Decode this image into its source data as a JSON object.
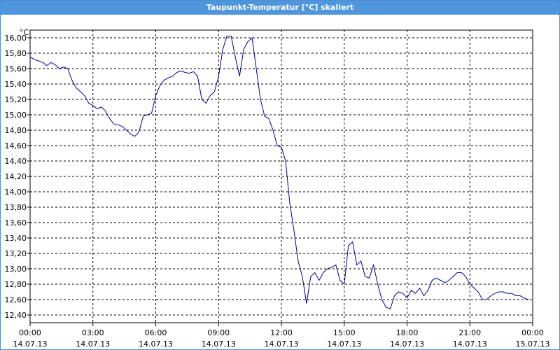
{
  "window": {
    "title": "Taupunkt-Temperatur [°C] skaliert"
  },
  "chart_data": {
    "type": "line",
    "title": "Taupunkt-Temperatur [°C] skaliert",
    "ylabel": "°C",
    "xlabel": "",
    "ylim": [
      12.3,
      16.1
    ],
    "xlim_hours": [
      0,
      24
    ],
    "grid": true,
    "line_color": "#000099",
    "grid_color": "#000000",
    "y_ticks": [
      "16,00",
      "15,80",
      "15,60",
      "15,40",
      "15,20",
      "15,00",
      "14,80",
      "14,60",
      "14,40",
      "14,20",
      "14,00",
      "13,80",
      "13,60",
      "13,40",
      "13,20",
      "13,00",
      "12,80",
      "12,60",
      "12,40"
    ],
    "y_tick_values": [
      16.0,
      15.8,
      15.6,
      15.4,
      15.2,
      15.0,
      14.8,
      14.6,
      14.4,
      14.2,
      14.0,
      13.8,
      13.6,
      13.4,
      13.2,
      13.0,
      12.8,
      12.6,
      12.4
    ],
    "x_ticks": [
      {
        "time": "00:00",
        "date": "14.07.13"
      },
      {
        "time": "03:00",
        "date": "14.07.13"
      },
      {
        "time": "06:00",
        "date": "14.07.13"
      },
      {
        "time": "09:00",
        "date": "14.07.13"
      },
      {
        "time": "12:00",
        "date": "14.07.13"
      },
      {
        "time": "15:00",
        "date": "14.07.13"
      },
      {
        "time": "18:00",
        "date": "14.07.13"
      },
      {
        "time": "21:00",
        "date": "14.07.13"
      },
      {
        "time": "00:00",
        "date": "15.07.13"
      }
    ],
    "x_tick_hours": [
      0,
      3,
      6,
      9,
      12,
      15,
      18,
      21,
      24
    ],
    "series": [
      {
        "x_hours": [
          0,
          0.2,
          0.4,
          0.6,
          0.8,
          1.0,
          1.2,
          1.4,
          1.6,
          1.8,
          2.0,
          2.2,
          2.4,
          2.6,
          2.8,
          3.0,
          3.2,
          3.4,
          3.6,
          3.8,
          4.0,
          4.2,
          4.4,
          4.6,
          4.8,
          5.0,
          5.2,
          5.4,
          5.6,
          5.8,
          6.0,
          6.2,
          6.4,
          6.6,
          6.8,
          7.0,
          7.2,
          7.4,
          7.6,
          7.8,
          8.0,
          8.2,
          8.4,
          8.6,
          8.8,
          9.0,
          9.2,
          9.4,
          9.6,
          9.8,
          10.0,
          10.2,
          10.4,
          10.6,
          10.8,
          11.0,
          11.2,
          11.4,
          11.6,
          11.8,
          12.0,
          12.2,
          12.4,
          12.6,
          12.8,
          13.0,
          13.2,
          13.4,
          13.6,
          13.8,
          14.0,
          14.2,
          14.4,
          14.6,
          14.8,
          15.0,
          15.2,
          15.4,
          15.6,
          15.8,
          16.0,
          16.2,
          16.4,
          16.6,
          16.8,
          17.0,
          17.2,
          17.4,
          17.6,
          17.8,
          18.0,
          18.2,
          18.4,
          18.6,
          18.8,
          19.0,
          19.2,
          19.4,
          19.6,
          19.8,
          20.0,
          20.2,
          20.4,
          20.6,
          20.8,
          21.0,
          21.2,
          21.4,
          21.6,
          21.8,
          22.0,
          22.2,
          22.4,
          22.6,
          22.8,
          23.0,
          23.2,
          23.4,
          23.6,
          23.8
        ],
        "values": [
          15.75,
          15.72,
          15.7,
          15.68,
          15.64,
          15.68,
          15.65,
          15.6,
          15.62,
          15.6,
          15.45,
          15.35,
          15.3,
          15.25,
          15.15,
          15.12,
          15.08,
          15.1,
          15.05,
          14.95,
          14.88,
          14.87,
          14.85,
          14.8,
          14.75,
          14.72,
          14.78,
          14.98,
          15.0,
          15.02,
          15.25,
          15.38,
          15.45,
          15.48,
          15.5,
          15.55,
          15.57,
          15.55,
          15.54,
          15.56,
          15.5,
          15.2,
          15.15,
          15.25,
          15.3,
          15.5,
          15.85,
          16.02,
          16.02,
          15.75,
          15.5,
          15.85,
          15.95,
          16.0,
          15.6,
          15.2,
          14.98,
          14.95,
          14.8,
          14.6,
          14.58,
          14.4,
          13.85,
          13.5,
          13.1,
          12.9,
          12.55,
          12.9,
          12.95,
          12.85,
          12.95,
          13.0,
          13.02,
          13.05,
          12.85,
          12.8,
          13.3,
          13.35,
          13.05,
          13.1,
          12.9,
          12.88,
          13.05,
          12.8,
          12.6,
          12.5,
          12.48,
          12.65,
          12.7,
          12.68,
          12.62,
          12.72,
          12.68,
          12.75,
          12.65,
          12.72,
          12.85,
          12.88,
          12.85,
          12.82,
          12.85,
          12.9,
          12.95,
          12.95,
          12.9,
          12.8,
          12.75,
          12.7,
          12.6,
          12.6,
          12.65,
          12.68,
          12.7,
          12.7,
          12.68,
          12.68,
          12.65,
          12.65,
          12.62,
          12.6
        ]
      }
    ]
  }
}
